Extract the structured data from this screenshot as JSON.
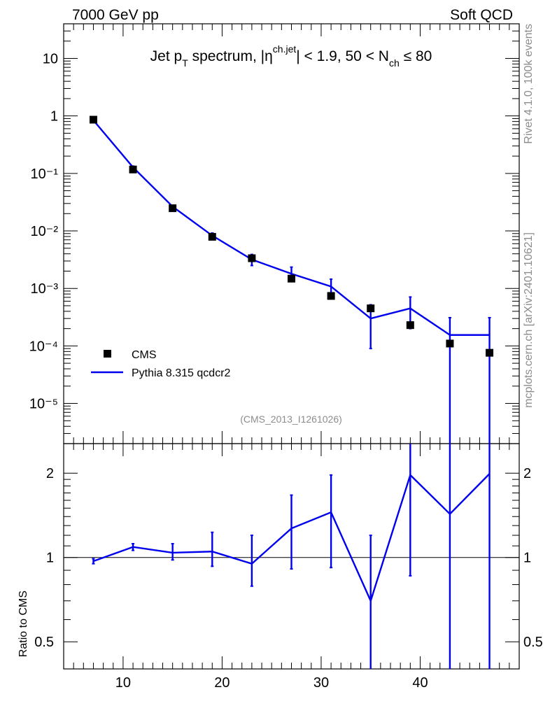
{
  "header": {
    "left": "7000 GeV pp",
    "right": "Soft QCD"
  },
  "side_labels": {
    "top": "Rivet 4.1.0,  100k events",
    "bottom": "mcplots.cern.ch [arXiv:2401.10621]"
  },
  "analysis_id": "(CMS_2013_I1261026)",
  "title_parts": {
    "jet": "Jet p",
    "pt_sub": "T",
    "spectrum": " spectrum, |",
    "eta": "η",
    "eta_sup": "ch.jet",
    "mid": "| < 1.9, 50 < N",
    "n_sub": "ch",
    "end": " ≤ 80"
  },
  "colors": {
    "mc": "#0000ee",
    "data": "#000000",
    "secondary_text": "#8c8c8c"
  },
  "chart_data": [
    {
      "type": "scatter",
      "panel": "main",
      "yscale": "log",
      "xlim": [
        4,
        50
      ],
      "ylim": [
        2e-06,
        40
      ],
      "ytick_labels": [
        "10⁻⁵",
        "10⁻⁴",
        "10⁻³",
        "10⁻²",
        "10⁻¹",
        "1",
        "10"
      ],
      "ytick_values": [
        1e-05,
        0.0001,
        0.001,
        0.01,
        0.1,
        1,
        10
      ],
      "legend": {
        "position": "lower-left",
        "entries": [
          {
            "key": "data",
            "label": "CMS"
          },
          {
            "key": "mc",
            "label": "Pythia 8.315 qcdcr2"
          }
        ]
      },
      "series": [
        {
          "name": "CMS",
          "x": [
            7,
            11,
            15,
            19,
            23,
            27,
            31,
            35,
            39,
            43,
            47
          ],
          "values": [
            0.86,
            0.117,
            0.0248,
            0.0079,
            0.00335,
            0.00148,
            0.00074,
            0.00045,
            0.00023,
            0.00011,
            7.6e-05
          ]
        },
        {
          "name": "Pythia 8.315 qcdcr2",
          "x": [
            7,
            11,
            15,
            19,
            23,
            27,
            31,
            35,
            39,
            43,
            47
          ],
          "values": [
            0.84,
            0.128,
            0.0265,
            0.0083,
            0.00318,
            0.0018,
            0.00108,
            0.0003,
            0.00045,
            0.000155,
            0.000155
          ],
          "err_low": [
            0.8,
            0.122,
            0.0252,
            0.0075,
            0.0025,
            0.00135,
            0.00074,
            9e-05,
            0.0002,
            1e-06,
            1e-06
          ],
          "err_high": [
            0.88,
            0.134,
            0.0278,
            0.0092,
            0.0039,
            0.00235,
            0.00145,
            0.00052,
            0.00071,
            0.00031,
            0.00031
          ]
        }
      ]
    },
    {
      "type": "line",
      "panel": "ratio",
      "ylabel": "Ratio to CMS",
      "yscale": "log",
      "xlim": [
        4,
        50
      ],
      "ylim": [
        0.4,
        2.55
      ],
      "xticks": [
        10,
        20,
        30,
        40
      ],
      "ytick_labels": [
        "0.5",
        "1",
        "2"
      ],
      "ytick_values": [
        0.5,
        1,
        2
      ],
      "reference_line": 1,
      "series": [
        {
          "name": "Pythia 8.315 qcdcr2",
          "x": [
            7,
            11,
            15,
            19,
            23,
            27,
            31,
            35,
            39,
            43,
            47
          ],
          "values": [
            0.97,
            1.09,
            1.04,
            1.05,
            0.95,
            1.27,
            1.45,
            0.7,
            1.97,
            1.43,
            1.99
          ],
          "err_low": [
            0.95,
            1.06,
            0.98,
            0.93,
            0.79,
            0.91,
            0.92,
            0.38,
            0.86,
            0.38,
            0.38
          ],
          "err_high": [
            0.99,
            1.12,
            1.12,
            1.23,
            1.2,
            1.67,
            1.97,
            1.2,
            2.55,
            2.55,
            2.55
          ]
        }
      ]
    }
  ]
}
